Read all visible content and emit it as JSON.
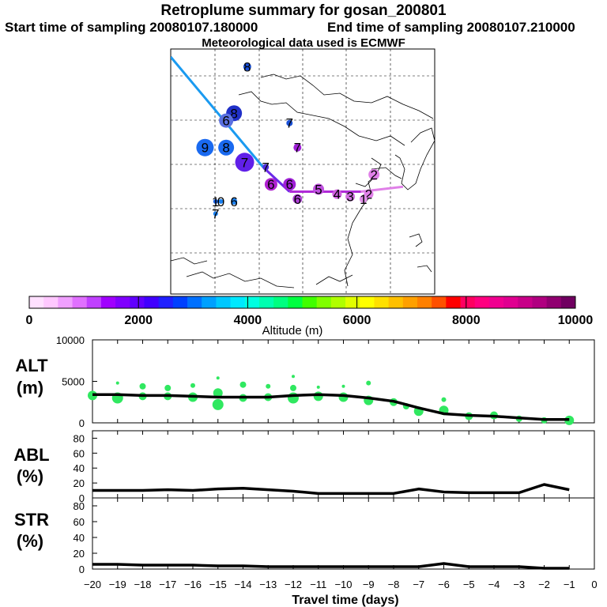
{
  "title": "Retroplume summary for gosan_200801",
  "start_label": "Start time of sampling 20080107.180000",
  "end_label": "End time of sampling 20080107.210000",
  "met_label": "Meteorological data used is ECMWF",
  "colorbar": {
    "label": "Altitude (m)",
    "ticks": [
      0,
      2000,
      4000,
      6000,
      8000,
      10000
    ],
    "colors": [
      "#ffe0ff",
      "#ffc8ff",
      "#f0a0ff",
      "#e070ff",
      "#c040ff",
      "#a000ff",
      "#8000ff",
      "#6000ff",
      "#4000ff",
      "#2020ff",
      "#0040ff",
      "#0070ff",
      "#00a0ff",
      "#00c8ff",
      "#00e8ff",
      "#00ffe0",
      "#00ffb0",
      "#00ff80",
      "#00ff40",
      "#40ff00",
      "#80ff00",
      "#b0ff00",
      "#e0ff00",
      "#ffff00",
      "#ffe000",
      "#ffc000",
      "#ffa000",
      "#ff8000",
      "#ff5000",
      "#ff0000",
      "#ff0060",
      "#ff0080",
      "#f00090",
      "#e00090",
      "#c80088",
      "#b00080",
      "#900070",
      "#700060"
    ]
  },
  "map": {
    "path_segments": [
      {
        "from": [
          0.0,
          0.0
        ],
        "to": [
          0.35,
          0.45
        ],
        "color": "#1a9af0"
      },
      {
        "from": [
          0.35,
          0.45
        ],
        "to": [
          0.45,
          0.55
        ],
        "color": "#6a28e8"
      },
      {
        "from": [
          0.45,
          0.55
        ],
        "to": [
          0.72,
          0.55
        ],
        "color": "#b02ad8"
      },
      {
        "from": [
          0.72,
          0.55
        ],
        "to": [
          0.88,
          0.53
        ],
        "color": "#e080e8"
      }
    ],
    "markers": [
      {
        "label": "8",
        "u": 0.29,
        "v": 0.04,
        "size": 5,
        "color": "#1a50d8"
      },
      {
        "label": "8",
        "u": 0.24,
        "v": 0.23,
        "size": 10,
        "color": "#2030c8"
      },
      {
        "label": "6",
        "u": 0.21,
        "v": 0.26,
        "size": 9,
        "color": "#5a70e0"
      },
      {
        "label": "9",
        "u": 0.13,
        "v": 0.37,
        "size": 11,
        "color": "#1a6af0"
      },
      {
        "label": "8",
        "u": 0.21,
        "v": 0.37,
        "size": 10,
        "color": "#1a6af0"
      },
      {
        "label": "7",
        "u": 0.28,
        "v": 0.43,
        "size": 12,
        "color": "#6020e8"
      },
      {
        "label": "7",
        "u": 0.36,
        "v": 0.45,
        "size": 4,
        "color": "#5030e0"
      },
      {
        "label": "7",
        "u": 0.45,
        "v": 0.27,
        "size": 4,
        "color": "#1a50d8"
      },
      {
        "label": "7",
        "u": 0.48,
        "v": 0.37,
        "size": 5,
        "color": "#a020d8"
      },
      {
        "label": "6",
        "u": 0.38,
        "v": 0.52,
        "size": 8,
        "color": "#b020d0"
      },
      {
        "label": "6",
        "u": 0.45,
        "v": 0.52,
        "size": 8,
        "color": "#a020d8"
      },
      {
        "label": "6",
        "u": 0.48,
        "v": 0.58,
        "size": 6,
        "color": "#b040d8"
      },
      {
        "label": "5",
        "u": 0.56,
        "v": 0.54,
        "size": 7,
        "color": "#c050e0"
      },
      {
        "label": "4",
        "u": 0.63,
        "v": 0.56,
        "size": 6,
        "color": "#d060e0"
      },
      {
        "label": "3",
        "u": 0.68,
        "v": 0.57,
        "size": 6,
        "color": "#d070e0"
      },
      {
        "label": "2",
        "u": 0.75,
        "v": 0.56,
        "size": 6,
        "color": "#e080e8"
      },
      {
        "label": "2",
        "u": 0.77,
        "v": 0.48,
        "size": 7,
        "color": "#e080e8"
      },
      {
        "label": "1",
        "u": 0.73,
        "v": 0.58,
        "size": 5,
        "color": "#e090e8"
      },
      {
        "label": "1",
        "u": 0.17,
        "v": 0.59,
        "size": 3,
        "color": "#1a60e0"
      },
      {
        "label": "0",
        "u": 0.19,
        "v": 0.59,
        "size": 3,
        "color": "#1a80f0"
      },
      {
        "label": "6",
        "u": 0.24,
        "v": 0.59,
        "size": 4,
        "color": "#1a80f0"
      },
      {
        "label": "7",
        "u": 0.17,
        "v": 0.64,
        "size": 3,
        "color": "#1a80f0"
      }
    ]
  },
  "chart_data": [
    {
      "type": "line",
      "panel": "ALT",
      "title": "ALT",
      "ylabel": "(m)",
      "x": [
        -20,
        -19,
        -18,
        -17,
        -16,
        -15,
        -14,
        -13,
        -12,
        -11,
        -10,
        -9,
        -8,
        -7,
        -6,
        -5,
        -4,
        -3,
        -2,
        -1
      ],
      "values": [
        3400,
        3400,
        3300,
        3300,
        3200,
        3100,
        3100,
        3100,
        3300,
        3400,
        3300,
        3000,
        2600,
        1800,
        1100,
        900,
        800,
        600,
        400,
        400
      ],
      "scatter_points": [
        [
          -20,
          3300,
          6
        ],
        [
          -19,
          3000,
          7
        ],
        [
          -19,
          4800,
          2
        ],
        [
          -18,
          3200,
          5
        ],
        [
          -18,
          4400,
          4
        ],
        [
          -17,
          3200,
          5
        ],
        [
          -17,
          4200,
          4
        ],
        [
          -16,
          3100,
          6
        ],
        [
          -16,
          4500,
          3
        ],
        [
          -15,
          2200,
          7
        ],
        [
          -15,
          3600,
          6
        ],
        [
          -15,
          5400,
          2
        ],
        [
          -14,
          3000,
          5
        ],
        [
          -14,
          4600,
          4
        ],
        [
          -13,
          3100,
          5
        ],
        [
          -13,
          4400,
          3
        ],
        [
          -12,
          3000,
          7
        ],
        [
          -12,
          4200,
          4
        ],
        [
          -12,
          5600,
          2
        ],
        [
          -11,
          3200,
          6
        ],
        [
          -11,
          4300,
          2
        ],
        [
          -10,
          3100,
          6
        ],
        [
          -10,
          4400,
          2
        ],
        [
          -9,
          2700,
          6
        ],
        [
          -9,
          4800,
          3
        ],
        [
          -8,
          2500,
          5
        ],
        [
          -7.5,
          2000,
          4
        ],
        [
          -7,
          1400,
          6
        ],
        [
          -6,
          1500,
          6
        ],
        [
          -6,
          2800,
          3
        ],
        [
          -5,
          800,
          5
        ],
        [
          -4,
          900,
          5
        ],
        [
          -3,
          500,
          4
        ],
        [
          -2,
          300,
          4
        ],
        [
          -1,
          300,
          6
        ]
      ],
      "scatter_color": "#30e860",
      "ylim": [
        0,
        10000
      ],
      "yticks": [
        0,
        5000,
        10000
      ]
    },
    {
      "type": "line",
      "panel": "ABL",
      "title": "ABL",
      "ylabel": "(%)",
      "x": [
        -20,
        -19,
        -18,
        -17,
        -16,
        -15,
        -14,
        -13,
        -12,
        -11,
        -10,
        -9,
        -8,
        -7,
        -6,
        -5,
        -4,
        -3,
        -2,
        -1
      ],
      "values": [
        10,
        10,
        10,
        11,
        10,
        12,
        13,
        11,
        9,
        6,
        6,
        6,
        6,
        12,
        8,
        7,
        7,
        7,
        18,
        11
      ],
      "ylim": [
        0,
        90
      ],
      "yticks": [
        0,
        20,
        40,
        60,
        80
      ]
    },
    {
      "type": "line",
      "panel": "STR",
      "title": "STR",
      "ylabel": "(%)",
      "x": [
        -20,
        -19,
        -18,
        -17,
        -16,
        -15,
        -14,
        -13,
        -12,
        -11,
        -10,
        -9,
        -8,
        -7,
        -6,
        -5,
        -4,
        -3,
        -2,
        -1
      ],
      "values": [
        6,
        6,
        5,
        5,
        5,
        4,
        4,
        3,
        3,
        3,
        3,
        3,
        3,
        3,
        7,
        3,
        3,
        3,
        1,
        1
      ],
      "ylim": [
        0,
        90
      ],
      "yticks": [
        0,
        20,
        40,
        60,
        80
      ]
    }
  ],
  "xaxis": {
    "label": "Travel time (days)",
    "ticks": [
      -20,
      -19,
      -18,
      -17,
      -16,
      -15,
      -14,
      -13,
      -12,
      -11,
      -10,
      -9,
      -8,
      -7,
      -6,
      -5,
      -4,
      -3,
      -2,
      -1,
      0
    ],
    "xlim": [
      -20,
      0
    ]
  }
}
